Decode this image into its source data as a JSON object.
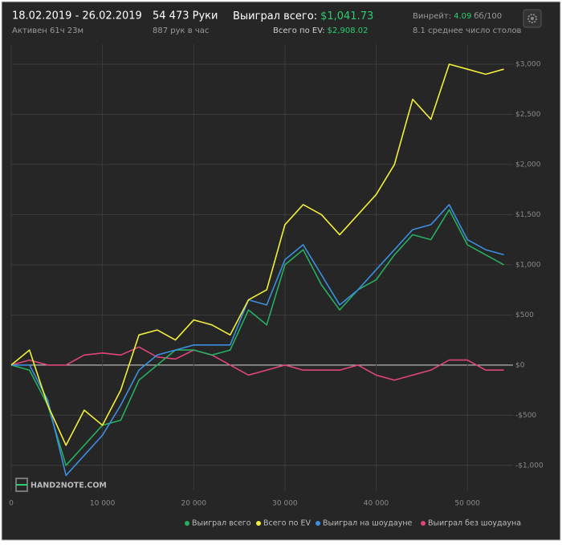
{
  "header": {
    "date_range": "18.02.2019 - 26.02.2019",
    "active_time": "Активен 61ч 23м",
    "hands": "54 473 Руки",
    "hands_per_hour": "887 рук в час",
    "won_total_label": "Выиграл всего:",
    "won_total_value": "$1,041.73",
    "ev_total_label": "Всего по EV:",
    "ev_total_value": "$2,908.02",
    "winrate_label": "Винрейт:",
    "winrate_value": "4.09",
    "winrate_unit": "бб/100",
    "avg_tables": "8.1 среднее число столов"
  },
  "chart_data": {
    "type": "line",
    "watermark": "HAND2NOTE.COM",
    "x": [
      0,
      2000,
      4000,
      6000,
      8000,
      10000,
      12000,
      14000,
      16000,
      18000,
      20000,
      22000,
      24000,
      26000,
      28000,
      30000,
      32000,
      34000,
      36000,
      38000,
      40000,
      42000,
      44000,
      46000,
      48000,
      50000,
      52000,
      54000
    ],
    "series": [
      {
        "name": "Выиграл всего",
        "color": "#27ae60",
        "values": [
          0,
          -50,
          -400,
          -1000,
          -800,
          -600,
          -550,
          -150,
          0,
          150,
          150,
          100,
          150,
          550,
          400,
          1000,
          1150,
          800,
          550,
          750,
          850,
          1100,
          1300,
          1250,
          1550,
          1200,
          1100,
          1000
        ]
      },
      {
        "name": "Всего по EV",
        "color": "#f2ee3c",
        "values": [
          0,
          150,
          -400,
          -800,
          -450,
          -600,
          -250,
          300,
          350,
          250,
          450,
          400,
          300,
          650,
          750,
          1400,
          1600,
          1500,
          1300,
          1500,
          1700,
          2000,
          2650,
          2450,
          3000,
          2950,
          2900,
          2950
        ]
      },
      {
        "name": "Выиграл на шоудауне",
        "color": "#3b8ee0",
        "values": [
          0,
          0,
          -350,
          -1100,
          -900,
          -700,
          -400,
          -50,
          100,
          150,
          200,
          200,
          200,
          650,
          600,
          1050,
          1200,
          900,
          600,
          750,
          950,
          1150,
          1350,
          1400,
          1600,
          1250,
          1150,
          1100
        ]
      },
      {
        "name": "Выиграл без шоудауна",
        "color": "#e0457b",
        "values": [
          0,
          50,
          0,
          0,
          100,
          120,
          100,
          180,
          80,
          60,
          150,
          100,
          0,
          -100,
          -50,
          0,
          -50,
          -50,
          -50,
          0,
          -100,
          -150,
          -100,
          -50,
          50,
          50,
          -50,
          -50
        ]
      }
    ],
    "xlim": [
      0,
      55000
    ],
    "ylim": [
      -1250,
      3200
    ],
    "xticks": [
      0,
      {
        "value": 10000,
        "label": "10 000"
      },
      {
        "value": 20000,
        "label": "20 000"
      },
      {
        "value": 30000,
        "label": "30 000"
      },
      {
        "value": 40000,
        "label": "40 000"
      },
      {
        "value": 50000,
        "label": "50 000"
      }
    ],
    "yticks": [
      {
        "value": -1000,
        "label": "-$1,000"
      },
      {
        "value": -500,
        "label": "-$500"
      },
      {
        "value": 0,
        "label": "$0"
      },
      {
        "value": 500,
        "label": "$500"
      },
      {
        "value": 1000,
        "label": "$1,000"
      },
      {
        "value": 1500,
        "label": "$1,500"
      },
      {
        "value": 2000,
        "label": "$2,000"
      },
      {
        "value": 2500,
        "label": "$2,500"
      },
      {
        "value": 3000,
        "label": "$3,000"
      }
    ],
    "grid": true
  }
}
